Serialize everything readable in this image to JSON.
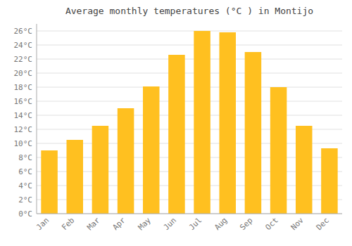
{
  "chart_data": {
    "type": "bar",
    "title": "Average monthly temperatures (°C ) in Montijo",
    "categories": [
      "Jan",
      "Feb",
      "Mar",
      "Apr",
      "May",
      "Jun",
      "Jul",
      "Aug",
      "Sep",
      "Oct",
      "Nov",
      "Dec"
    ],
    "values": [
      9.0,
      10.5,
      12.5,
      15.0,
      18.1,
      22.6,
      26.0,
      25.8,
      23.0,
      18.0,
      12.5,
      9.3
    ],
    "color": "#FFC020",
    "ylim": [
      0,
      27
    ],
    "yticks": [
      {
        "value": 0,
        "label": "0°C"
      },
      {
        "value": 2,
        "label": "2°C"
      },
      {
        "value": 4,
        "label": "4°C"
      },
      {
        "value": 6,
        "label": "6°C"
      },
      {
        "value": 8,
        "label": "8°C"
      },
      {
        "value": 10,
        "label": "10°C"
      },
      {
        "value": 12,
        "label": "12°C"
      },
      {
        "value": 14,
        "label": "14°C"
      },
      {
        "value": 16,
        "label": "16°C"
      },
      {
        "value": 18,
        "label": "18°C"
      },
      {
        "value": 20,
        "label": "20°C"
      },
      {
        "value": 22,
        "label": "22°C"
      },
      {
        "value": 24,
        "label": "24°C"
      },
      {
        "value": 26,
        "label": "26°C"
      }
    ],
    "grid": true
  }
}
